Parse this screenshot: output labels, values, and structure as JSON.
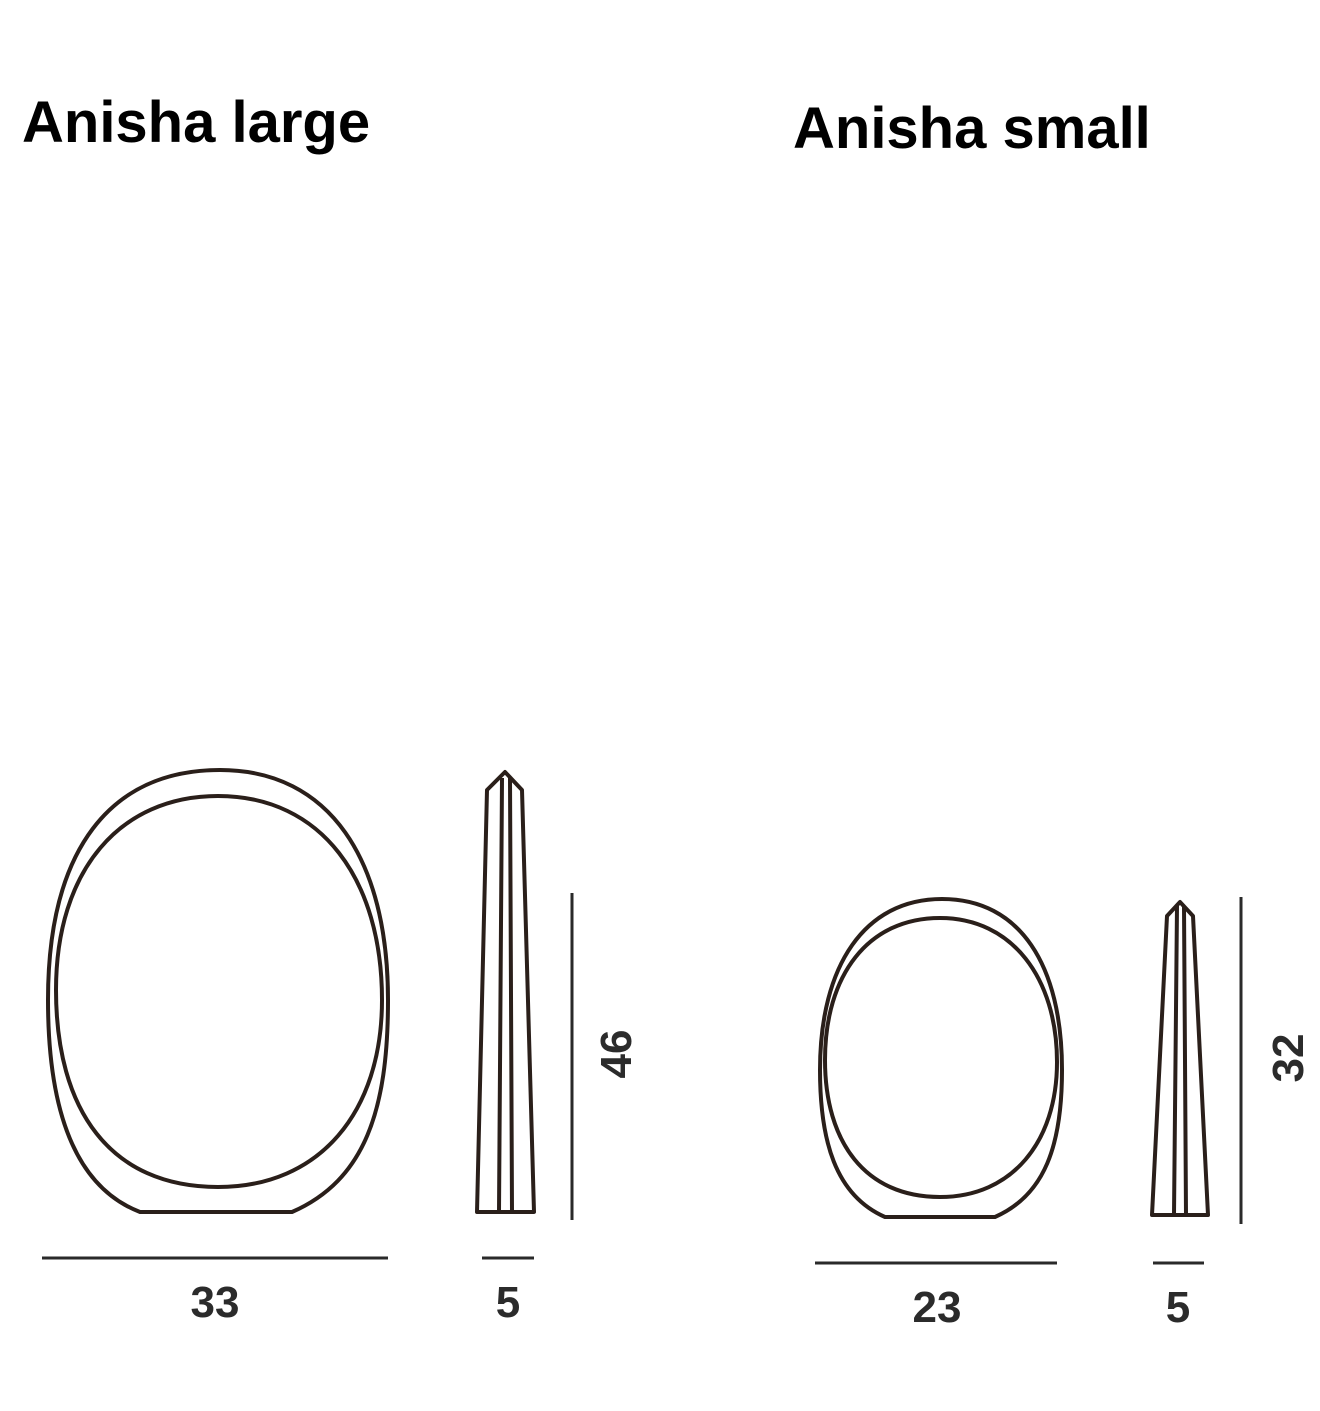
{
  "products": [
    {
      "title": "Anisha large",
      "width_label": "33",
      "depth_label": "5",
      "height_label": "46"
    },
    {
      "title": "Anisha small",
      "width_label": "23",
      "depth_label": "5",
      "height_label": "32"
    }
  ],
  "colors": {
    "outline": "#2a1f1a",
    "text": "#000000"
  }
}
